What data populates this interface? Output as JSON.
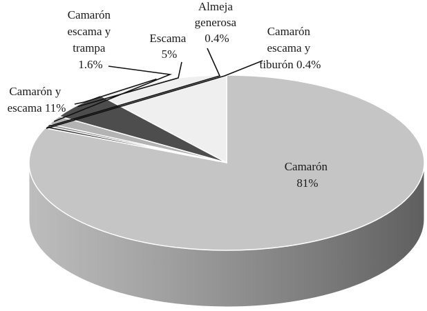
{
  "chart_data": {
    "type": "pie",
    "style": "3d",
    "title": "",
    "slices": [
      {
        "name": "Camarón",
        "value": 81,
        "label_lines": [
          "Camarón",
          "81%"
        ],
        "color": "#c5c5c5"
      },
      {
        "name": "Camarón y escama",
        "value": 11,
        "label_lines": [
          "Camarón y",
          "escama 11%"
        ],
        "color": "#efefef"
      },
      {
        "name": "Escama",
        "value": 5,
        "label_lines": [
          "Escama",
          "5%"
        ],
        "color": "#4d4d4d"
      },
      {
        "name": "Camarón escama y trampa",
        "value": 1.6,
        "label_lines": [
          "Camarón",
          "escama y",
          "trampa",
          "1.6%"
        ],
        "color": "#b3b3b3"
      },
      {
        "name": "Almeja generosa",
        "value": 0.4,
        "label_lines": [
          "Almeja",
          "generosa",
          "0.4%"
        ],
        "color": "#8a8a8a"
      },
      {
        "name": "Camarón escama y tiburón",
        "value": 0.4,
        "label_lines": [
          "Camarón",
          "escama y",
          "tiburón 0.4%"
        ],
        "color": "#2e2e2e"
      }
    ]
  }
}
